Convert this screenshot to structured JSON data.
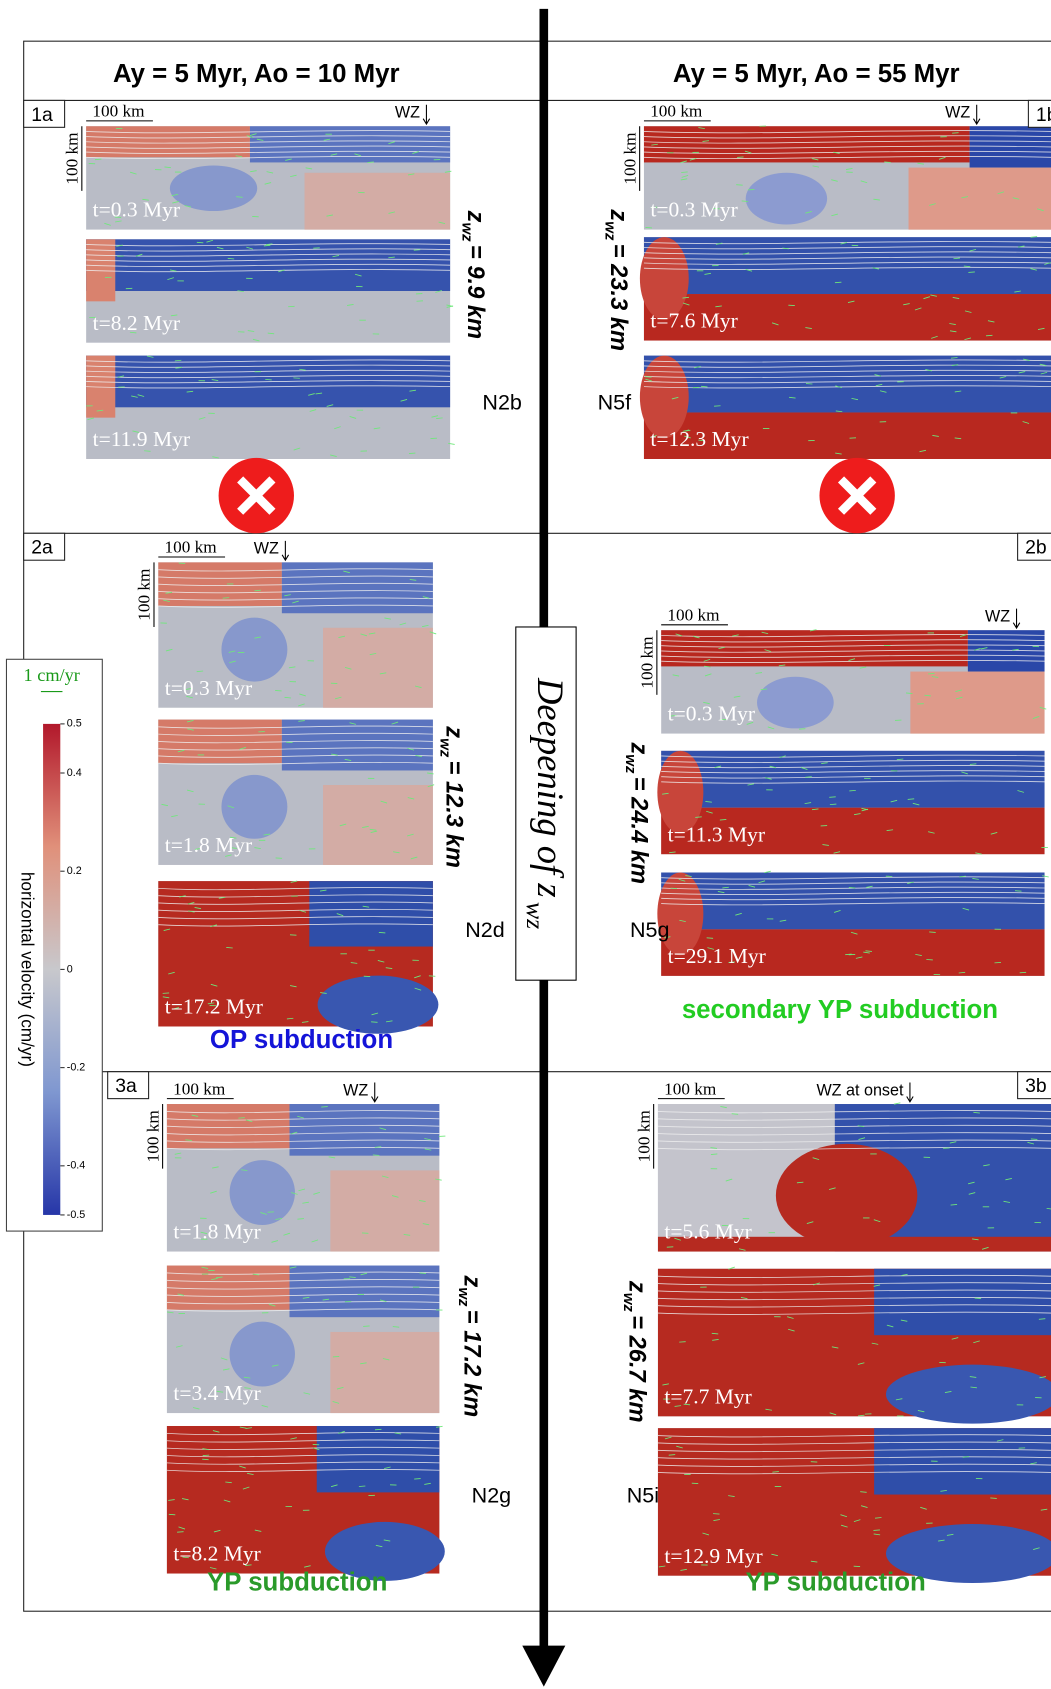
{
  "columns": [
    "Ay = 5 Myr, Ao = 10 Myr",
    "Ay = 5 Myr, Ao = 55 Myr"
  ],
  "axis_label": {
    "text": "Deepening of z",
    "subscript": "wz"
  },
  "depth_symbol": {
    "text": "z",
    "subscript": "wz"
  },
  "colorbar": {
    "vector_scale": "1 cm/yr",
    "label": "horizontal velocity (cm/yr)",
    "lim": [
      -0.5,
      0.5
    ],
    "ticks": [
      0.5,
      0.4,
      0.2,
      0,
      -0.2,
      -0.4,
      -0.5
    ]
  },
  "panels": [
    {
      "id": "1a",
      "model": "N2b",
      "depth": "= 9.9 km",
      "scale": "100 km",
      "wz": "WZ",
      "times": [
        "t=0.3 Myr",
        "t=8.2 Myr",
        "t=11.9 Myr"
      ]
    },
    {
      "id": "1b",
      "model": "N5f",
      "depth": "= 23.3 km",
      "scale": "100 km",
      "wz": "WZ",
      "times": [
        "t=0.3 Myr",
        "t=7.6 Myr",
        "t=12.3 Myr"
      ]
    },
    {
      "id": "2a",
      "model": "N2d",
      "depth": "= 12.3 km",
      "scale": "100 km",
      "wz": "WZ",
      "times": [
        "t=0.3 Myr",
        "t=1.8 Myr",
        "t=17.2 Myr"
      ],
      "outcome": "OP subduction"
    },
    {
      "id": "2b",
      "model": "N5g",
      "depth": "= 24.4 km",
      "scale": "100 km",
      "wz": "WZ",
      "times": [
        "t=0.3 Myr",
        "t=11.3 Myr",
        "t=29.1 Myr"
      ],
      "outcome": "secondary YP subduction"
    },
    {
      "id": "3a",
      "model": "N2g",
      "depth": "= 17.2 km",
      "scale": "100 km",
      "wz": "WZ",
      "times": [
        "t=1.8 Myr",
        "t=3.4 Myr",
        "t=8.2 Myr"
      ],
      "outcome": "YP subduction"
    },
    {
      "id": "3b",
      "model": "N5i",
      "depth": "= 26.7 km",
      "scale": "100 km",
      "wz": "WZ at onset",
      "times": [
        "t=5.6 Myr",
        "t=7.7 Myr",
        "t=12.9 Myr"
      ],
      "outcome": "YP subduction"
    }
  ]
}
